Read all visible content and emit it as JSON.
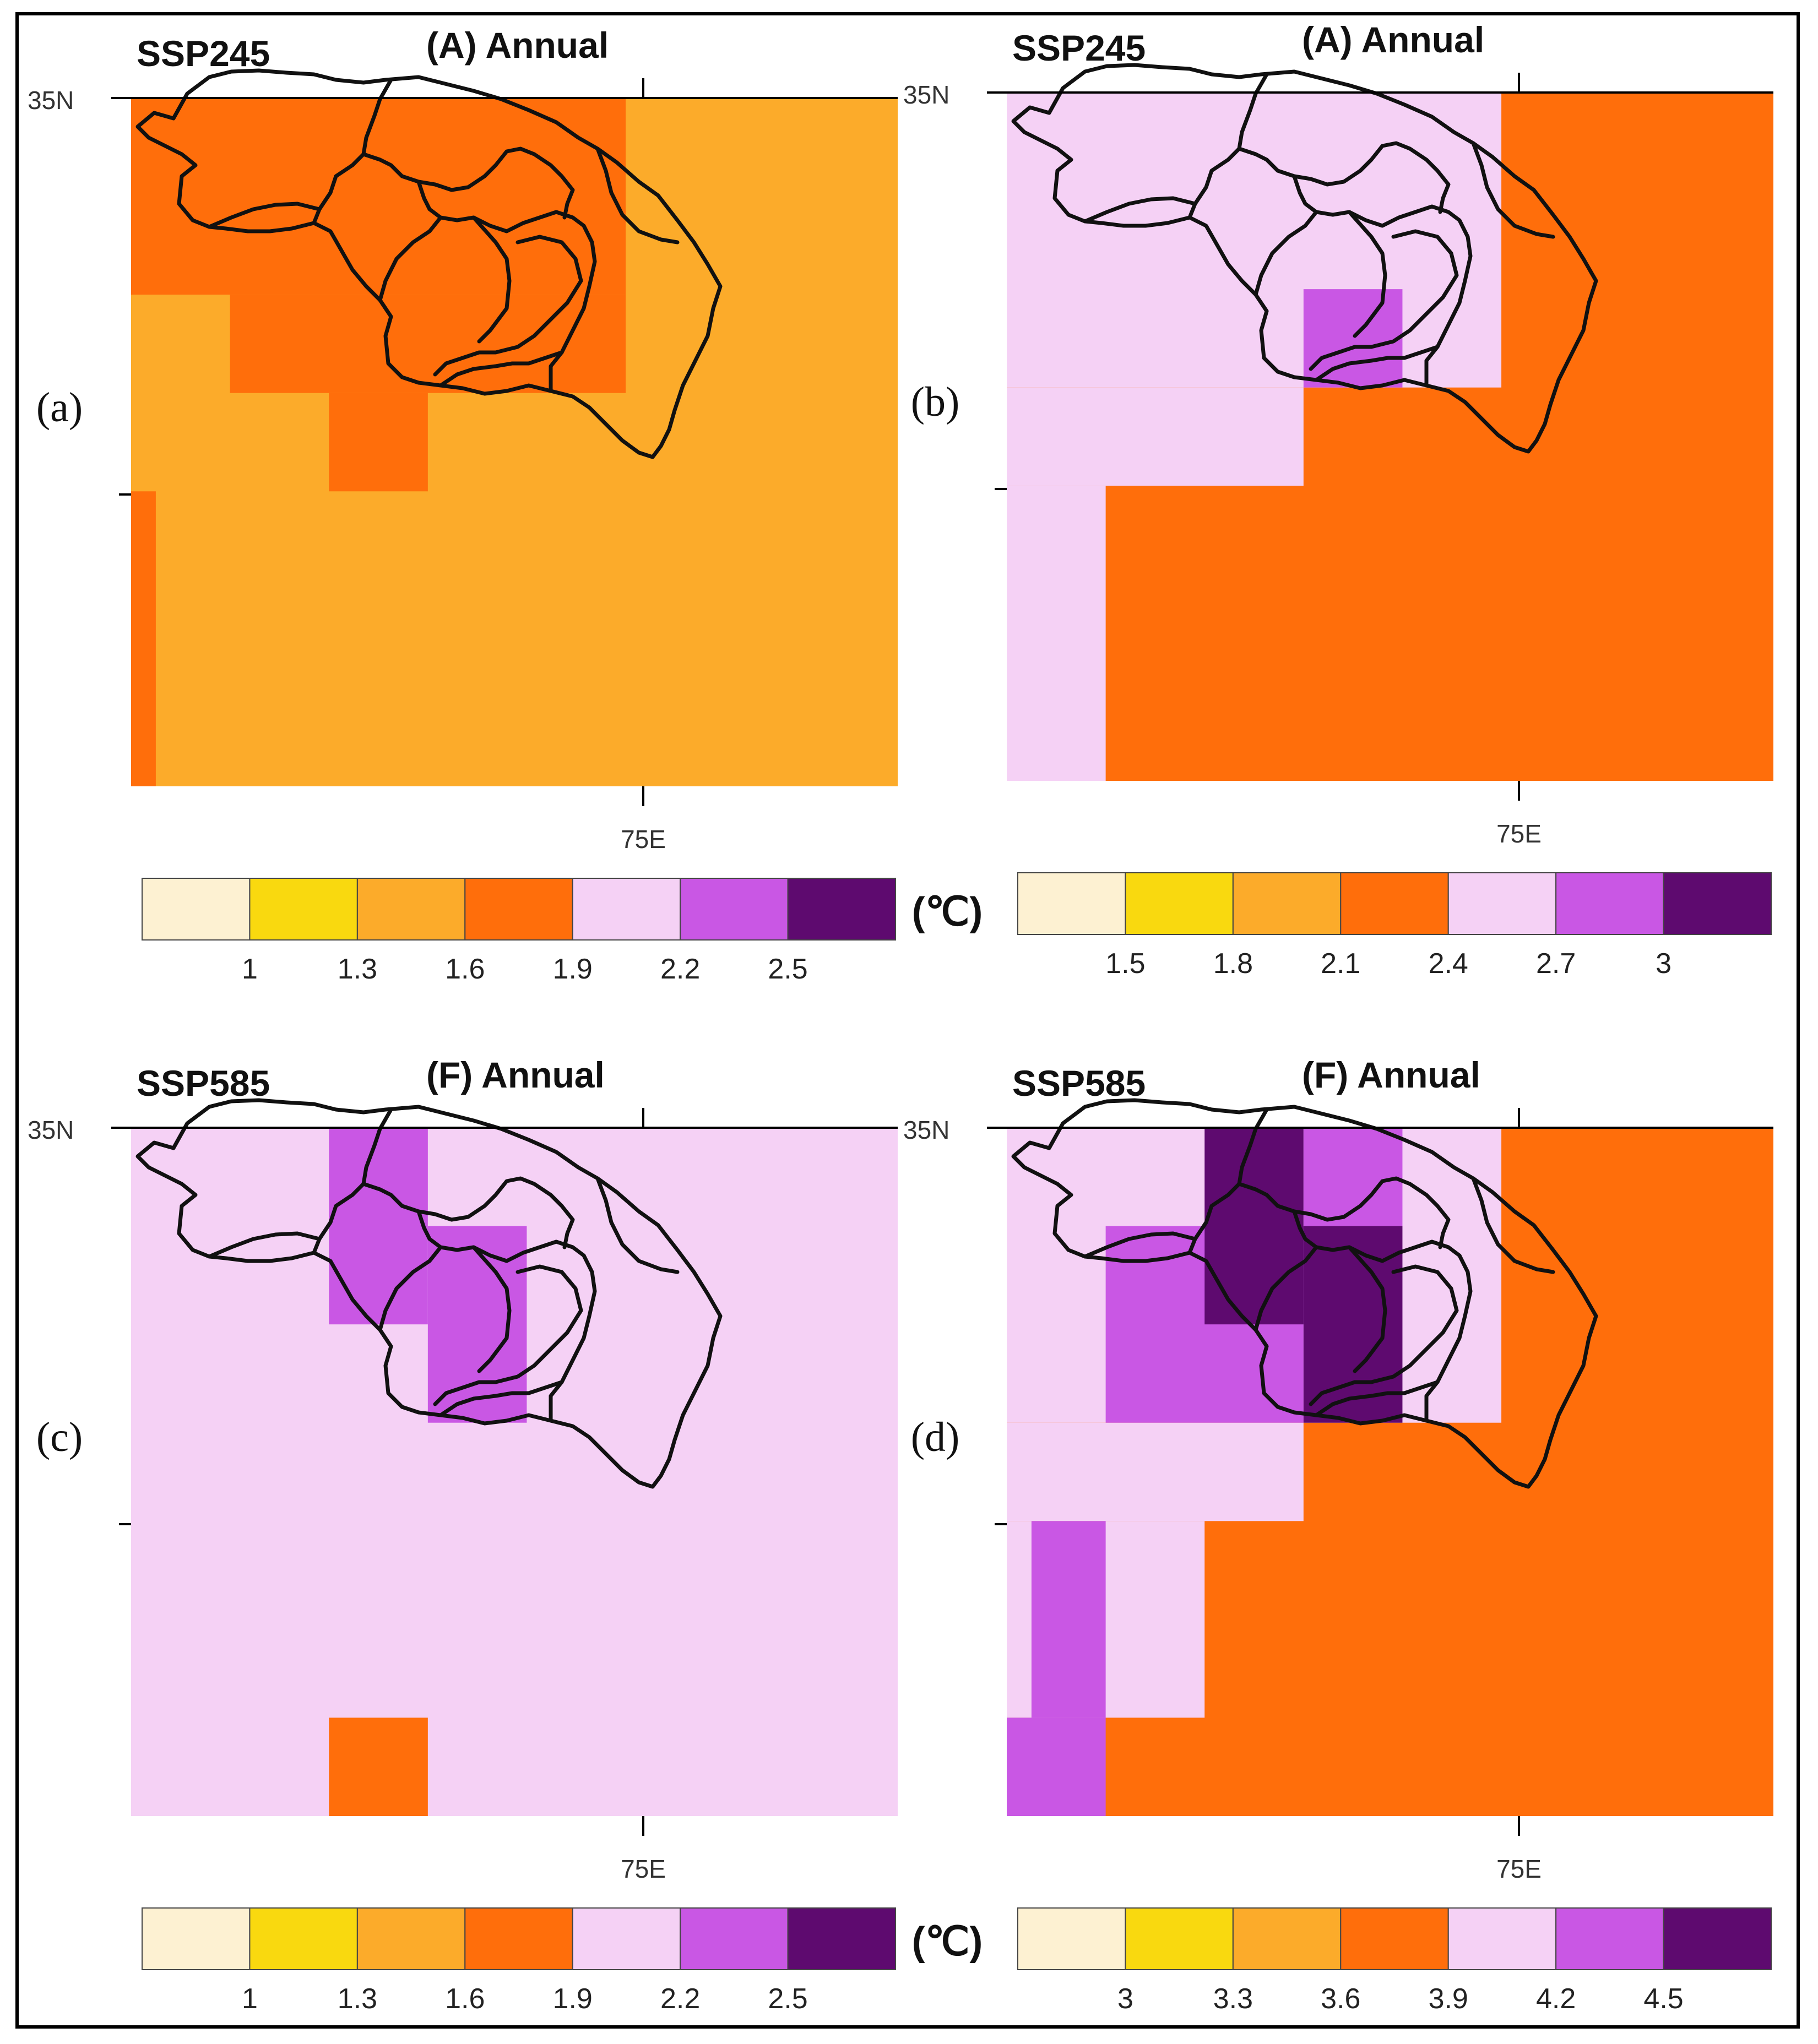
{
  "colors": {
    "c1": "#fdf1d2",
    "c2": "#f9d90f",
    "c3": "#fcab2a",
    "c4": "#ff6e0b",
    "c5": "#f5d1f5",
    "c6": "#c957e4",
    "c7": "#5e0a6f"
  },
  "panels": [
    {
      "id": "a",
      "label": "(a)",
      "scenario": "SSP245",
      "title": "(A) Annual",
      "lat_label": "35N",
      "lon_label": "75E",
      "unit": "(℃)",
      "colorbar_ticks": [
        "1",
        "1.3",
        "1.6",
        "1.9",
        "2.2",
        "2.5"
      ],
      "base_color": "c3",
      "cells": [
        {
          "col": 0,
          "row": 0,
          "w": 5,
          "h": 2,
          "color": "c4"
        },
        {
          "col": 1,
          "row": 2,
          "w": 4,
          "h": 1,
          "color": "c4"
        },
        {
          "col": 2,
          "row": 3,
          "w": 1,
          "h": 1,
          "color": "c4"
        },
        {
          "col": 0,
          "row": 4,
          "w": 0.25,
          "h": 3,
          "color": "c4"
        }
      ]
    },
    {
      "id": "b",
      "label": "(b)",
      "scenario": "SSP245",
      "title": "(A) Annual",
      "lat_label": "35N",
      "lon_label": "75E",
      "unit": "",
      "colorbar_ticks": [
        "1.5",
        "1.8",
        "2.1",
        "2.4",
        "2.7",
        "3"
      ],
      "base_color": "c4",
      "cells": [
        {
          "col": 0,
          "row": 0,
          "w": 5,
          "h": 3,
          "color": "c5"
        },
        {
          "col": 0,
          "row": 3,
          "w": 3,
          "h": 1,
          "color": "c5"
        },
        {
          "col": 0,
          "row": 4,
          "w": 1,
          "h": 3,
          "color": "c5"
        },
        {
          "col": 3,
          "row": 2,
          "w": 1,
          "h": 1,
          "color": "c6"
        }
      ]
    },
    {
      "id": "c",
      "label": "(c)",
      "scenario": "SSP585",
      "title": "(F) Annual",
      "lat_label": "35N",
      "lon_label": "75E",
      "unit": "(℃)",
      "colorbar_ticks": [
        "1",
        "1.3",
        "1.6",
        "1.9",
        "2.2",
        "2.5"
      ],
      "base_color": "c5",
      "cells": [
        {
          "col": 2,
          "row": 0,
          "w": 1,
          "h": 2,
          "color": "c6"
        },
        {
          "col": 3,
          "row": 1,
          "w": 1,
          "h": 2,
          "color": "c6"
        },
        {
          "col": 2,
          "row": 6,
          "w": 1,
          "h": 1,
          "color": "c4"
        }
      ]
    },
    {
      "id": "d",
      "label": "(d)",
      "scenario": "SSP585",
      "title": "(F) Annual",
      "lat_label": "35N",
      "lon_label": "75E",
      "unit": "",
      "colorbar_ticks": [
        "3",
        "3.3",
        "3.6",
        "3.9",
        "4.2",
        "4.5"
      ],
      "base_color": "c4",
      "cells": [
        {
          "col": 0,
          "row": 0,
          "w": 5,
          "h": 3,
          "color": "c5"
        },
        {
          "col": 0,
          "row": 3,
          "w": 3,
          "h": 1,
          "color": "c5"
        },
        {
          "col": 0,
          "row": 4,
          "w": 2,
          "h": 2,
          "color": "c5"
        },
        {
          "col": 1,
          "row": 1,
          "w": 2,
          "h": 2,
          "color": "c6"
        },
        {
          "col": 2,
          "row": 0,
          "w": 1,
          "h": 2,
          "color": "c7"
        },
        {
          "col": 3,
          "row": 0,
          "w": 1,
          "h": 1,
          "color": "c6"
        },
        {
          "col": 3,
          "row": 1,
          "w": 1,
          "h": 2,
          "color": "c7"
        },
        {
          "col": 0.25,
          "row": 4,
          "w": 0.75,
          "h": 2,
          "color": "c6"
        },
        {
          "col": 0,
          "row": 6,
          "w": 1,
          "h": 1,
          "color": "c6"
        }
      ]
    }
  ]
}
